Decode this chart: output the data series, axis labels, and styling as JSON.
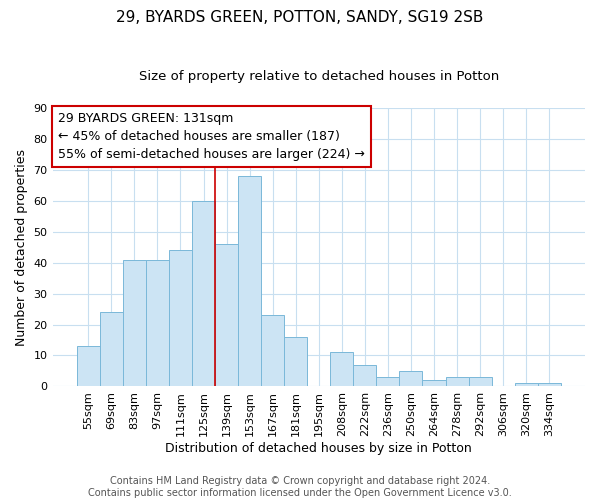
{
  "title": "29, BYARDS GREEN, POTTON, SANDY, SG19 2SB",
  "subtitle": "Size of property relative to detached houses in Potton",
  "xlabel": "Distribution of detached houses by size in Potton",
  "ylabel": "Number of detached properties",
  "bin_labels": [
    "55sqm",
    "69sqm",
    "83sqm",
    "97sqm",
    "111sqm",
    "125sqm",
    "139sqm",
    "153sqm",
    "167sqm",
    "181sqm",
    "195sqm",
    "208sqm",
    "222sqm",
    "236sqm",
    "250sqm",
    "264sqm",
    "278sqm",
    "292sqm",
    "306sqm",
    "320sqm",
    "334sqm"
  ],
  "bar_heights": [
    13,
    24,
    41,
    41,
    44,
    60,
    46,
    68,
    23,
    16,
    0,
    11,
    7,
    3,
    5,
    2,
    3,
    3,
    0,
    1,
    1
  ],
  "bar_color": "#cce4f4",
  "bar_edge_color": "#7ab8d9",
  "vline_x": 6,
  "vline_color": "#cc0000",
  "ylim": [
    0,
    90
  ],
  "yticks": [
    0,
    10,
    20,
    30,
    40,
    50,
    60,
    70,
    80,
    90
  ],
  "annotation_line1": "29 BYARDS GREEN: 131sqm",
  "annotation_line2": "← 45% of detached houses are smaller (187)",
  "annotation_line3": "55% of semi-detached houses are larger (224) →",
  "annotation_box_color": "#ffffff",
  "annotation_box_edge": "#cc0000",
  "footer1": "Contains HM Land Registry data © Crown copyright and database right 2024.",
  "footer2": "Contains public sector information licensed under the Open Government Licence v3.0.",
  "bg_color": "#ffffff",
  "grid_color": "#c8dff0",
  "title_fontsize": 11,
  "subtitle_fontsize": 9.5,
  "axis_label_fontsize": 9,
  "tick_fontsize": 8,
  "annotation_fontsize": 9,
  "footer_fontsize": 7
}
